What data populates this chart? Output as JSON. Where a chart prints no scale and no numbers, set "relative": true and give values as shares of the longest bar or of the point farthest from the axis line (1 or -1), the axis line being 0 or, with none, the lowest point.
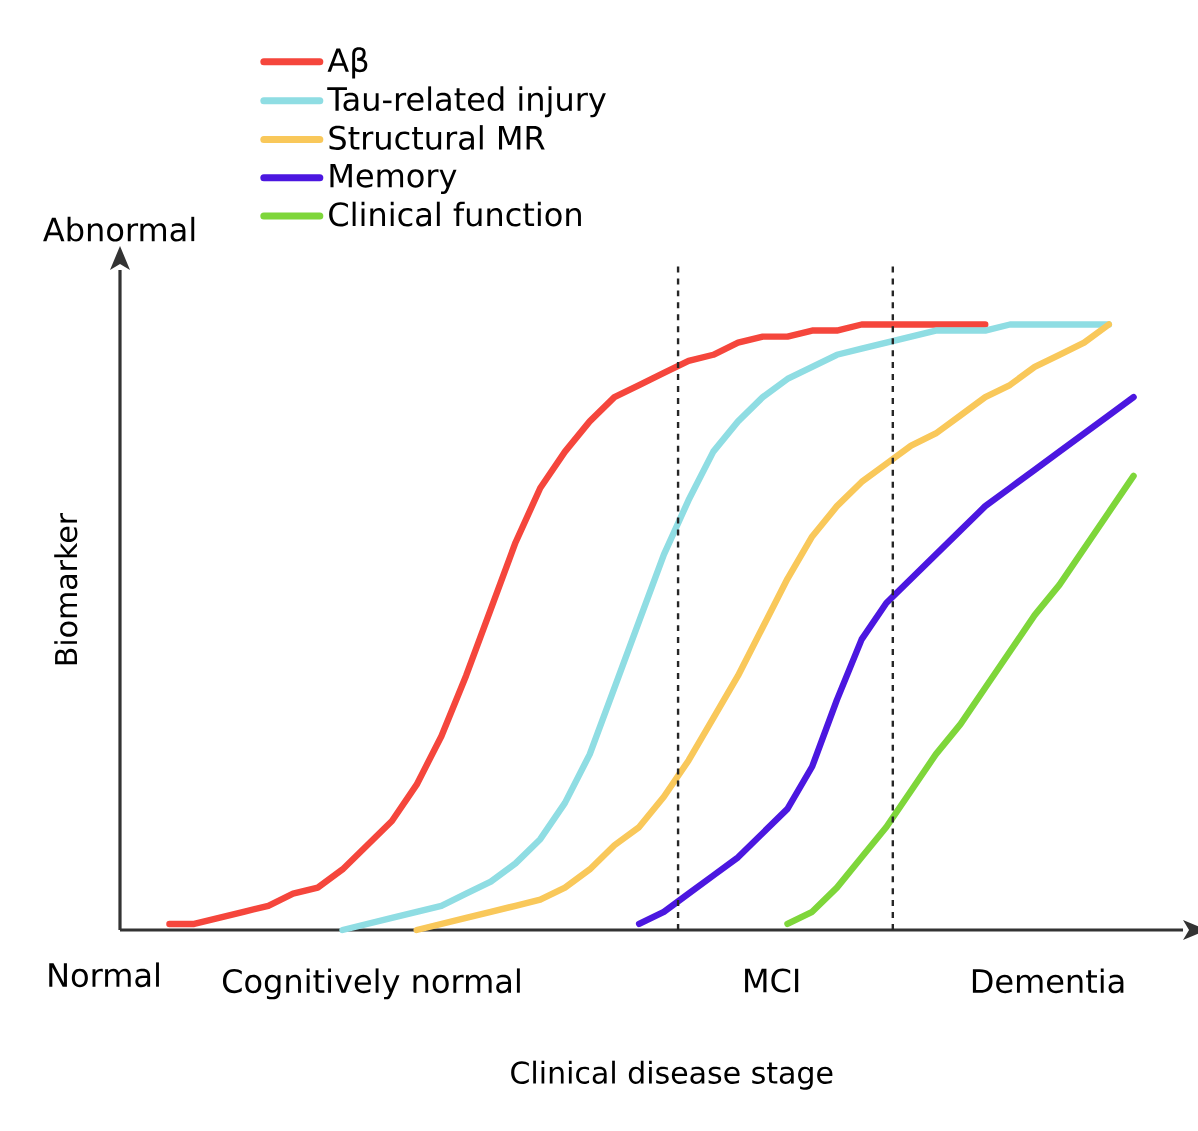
{
  "chart_data": {
    "type": "line",
    "relative": true,
    "xlabel": "Clinical disease stage",
    "ylabel": "Biomarker",
    "annotations": [
      "Abnormal",
      "Normal",
      "Cognitively normal",
      "MCI",
      "Dementia"
    ],
    "categories": [
      null,
      null,
      null,
      null,
      null,
      null,
      null,
      null,
      null,
      null,
      null,
      null,
      null,
      null,
      null,
      null,
      null,
      null,
      null,
      null,
      null,
      null,
      null,
      null,
      null,
      null,
      null,
      null,
      null,
      null,
      null,
      null,
      null,
      null,
      null,
      null,
      null,
      null,
      null,
      null,
      null,
      null,
      null,
      null
    ],
    "series": [
      {
        "name": "Aβ",
        "color": "#f5463c",
        "values": [
          null,
          null,
          0.01,
          0.01,
          0.02,
          0.03,
          0.04,
          0.06,
          0.07,
          0.1,
          0.14,
          0.18,
          0.24,
          0.32,
          0.42,
          0.53,
          0.64,
          0.73,
          0.79,
          0.84,
          0.88,
          0.9,
          0.92,
          0.94,
          0.95,
          0.97,
          0.98,
          0.98,
          0.99,
          0.99,
          1,
          1,
          1,
          1,
          1,
          1,
          null,
          null,
          null,
          null,
          null,
          null,
          null,
          null
        ]
      },
      {
        "name": "Tau-related injury",
        "color": "#8fdde3",
        "values": [
          null,
          null,
          null,
          null,
          null,
          null,
          null,
          null,
          null,
          0,
          0.01,
          0.02,
          0.03,
          0.04,
          0.06,
          0.08,
          0.11,
          0.15,
          0.21,
          0.29,
          0.4,
          0.51,
          0.62,
          0.71,
          0.79,
          0.84,
          0.88,
          0.91,
          0.93,
          0.95,
          0.96,
          0.97,
          0.98,
          0.99,
          0.99,
          0.99,
          1,
          1,
          1,
          1,
          1,
          null,
          null,
          null
        ]
      },
      {
        "name": "Structural MR",
        "color": "#f9c85a",
        "values": [
          null,
          null,
          null,
          null,
          null,
          null,
          null,
          null,
          null,
          null,
          null,
          null,
          0,
          0.01,
          0.02,
          0.03,
          0.04,
          0.05,
          0.07,
          0.1,
          0.14,
          0.17,
          0.22,
          0.28,
          0.35,
          0.42,
          0.5,
          0.58,
          0.65,
          0.7,
          0.74,
          0.77,
          0.8,
          0.82,
          0.85,
          0.88,
          0.9,
          0.93,
          0.95,
          0.97,
          1,
          null,
          null,
          null
        ]
      },
      {
        "name": "Memory",
        "color": "#4b17e0",
        "values": [
          null,
          null,
          null,
          null,
          null,
          null,
          null,
          null,
          null,
          null,
          null,
          null,
          null,
          null,
          null,
          null,
          null,
          null,
          null,
          null,
          null,
          0.01,
          0.03,
          0.06,
          0.09,
          0.12,
          0.16,
          0.2,
          0.27,
          0.38,
          0.48,
          0.54,
          0.58,
          0.62,
          0.66,
          0.7,
          0.73,
          0.76,
          0.79,
          0.82,
          0.85,
          0.88,
          null,
          null
        ]
      },
      {
        "name": "Clinical function",
        "color": "#7ed63a",
        "values": [
          null,
          null,
          null,
          null,
          null,
          null,
          null,
          null,
          null,
          null,
          null,
          null,
          null,
          null,
          null,
          null,
          null,
          null,
          null,
          null,
          null,
          null,
          null,
          null,
          null,
          null,
          null,
          0.01,
          0.03,
          0.07,
          0.12,
          0.17,
          0.23,
          0.29,
          0.34,
          0.4,
          0.46,
          0.52,
          0.57,
          0.63,
          0.69,
          0.75,
          null,
          null
        ]
      }
    ],
    "legend": "top left",
    "marker": "none",
    "line_style": "solid"
  }
}
